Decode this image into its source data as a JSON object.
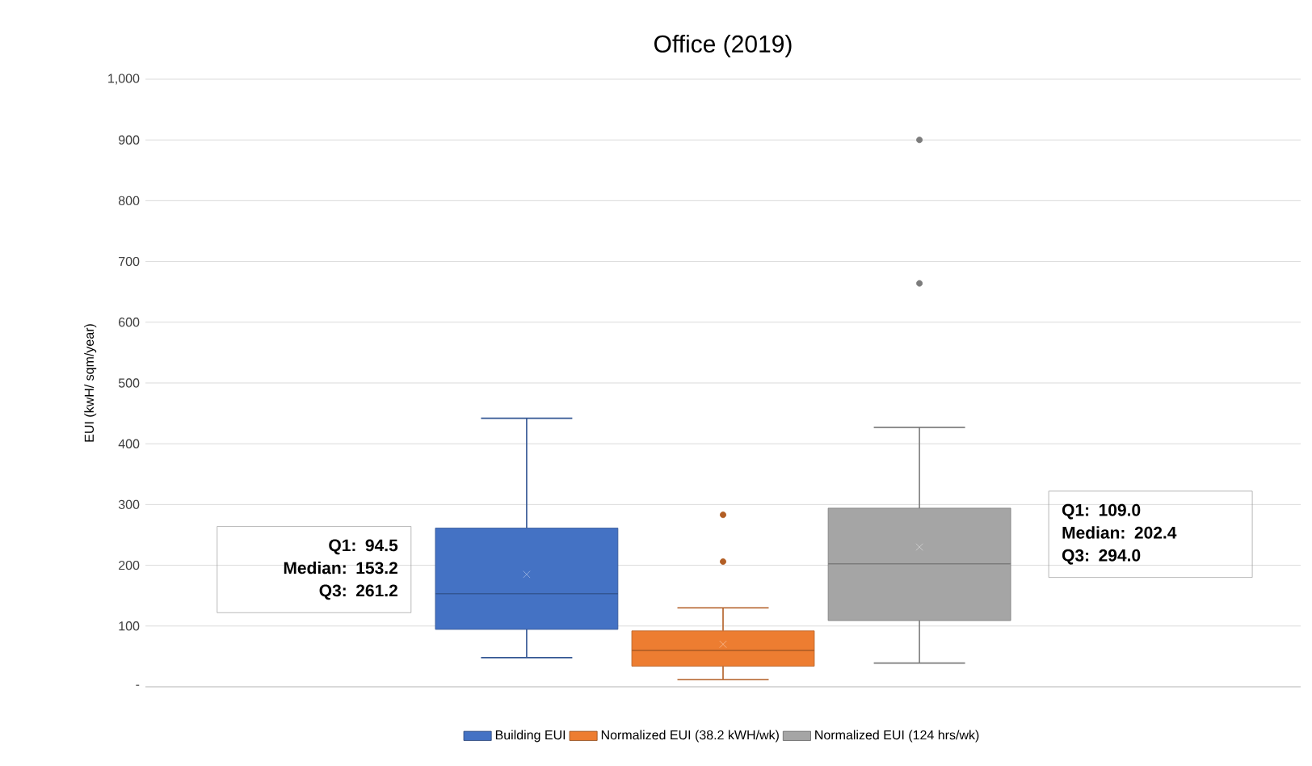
{
  "chart_data": {
    "type": "box",
    "title": "Office (2019)",
    "ylabel": "EUI (kwH/ sqm/year)",
    "categories": [
      null
    ],
    "series": [
      {
        "name": "Building EUI",
        "color": "#4472c4",
        "boxes": [
          {
            "low": 48,
            "q1": 94.5,
            "median": 153.2,
            "q3": 261.2,
            "high": 442,
            "mean": 185
          }
        ]
      },
      {
        "name": "Normalized EUI (38.2 kWH/wk)",
        "color": "#ed7d31",
        "boxes": [
          {
            "low": 12,
            "q1": 34,
            "median": 60,
            "q3": 92,
            "high": 130,
            "mean": 70,
            "outliers": [
              283,
              206
            ]
          }
        ]
      },
      {
        "name": "Normalized EUI (124 hrs/wk)",
        "color": "#a5a5a5",
        "boxes": [
          {
            "low": 39,
            "q1": 109.0,
            "median": 202.4,
            "q3": 294.0,
            "high": 427,
            "mean": 230,
            "outliers": [
              900,
              664
            ]
          }
        ]
      }
    ],
    "ylim": [
      0,
      1000
    ],
    "yticks": [
      {
        "value": 0,
        "label": "-"
      },
      100,
      200,
      300,
      400,
      500,
      600,
      700,
      800,
      900,
      {
        "value": 1000,
        "label": "1,000"
      }
    ],
    "grid": "y",
    "legend": "bottom",
    "annotations": [
      "Q1: 94.5",
      "Median: 153.2",
      "Q3: 261.2",
      "Q1: 109.0",
      "Median: 202.4",
      "Q3: 294.0"
    ]
  }
}
